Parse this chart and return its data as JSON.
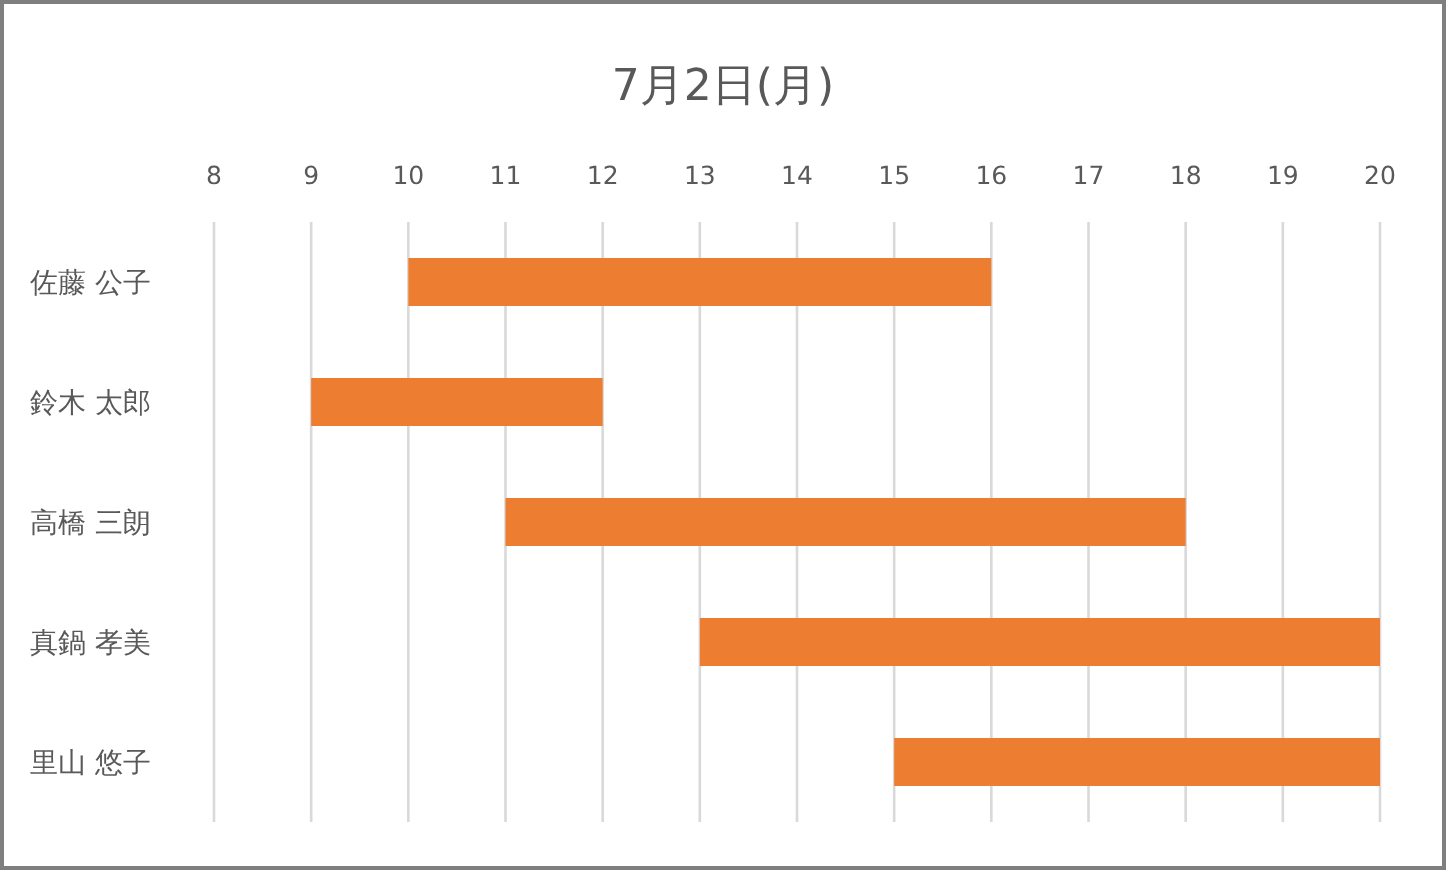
{
  "chart_data": {
    "type": "bar",
    "orientation": "horizontal",
    "title": "7月2日(月)",
    "categories": [
      "佐藤 公子",
      "鈴木 太郎",
      "高橋 三朗",
      "真鍋 孝美",
      "里山 悠子"
    ],
    "base": [
      10,
      9,
      11,
      13,
      15
    ],
    "values": [
      6,
      3,
      7,
      7,
      5
    ],
    "color": "#ed7d31",
    "xlim": [
      8,
      20
    ],
    "xticks": [
      8,
      9,
      10,
      11,
      12,
      13,
      14,
      15,
      16,
      17,
      18,
      19,
      20
    ],
    "grid": "x"
  }
}
